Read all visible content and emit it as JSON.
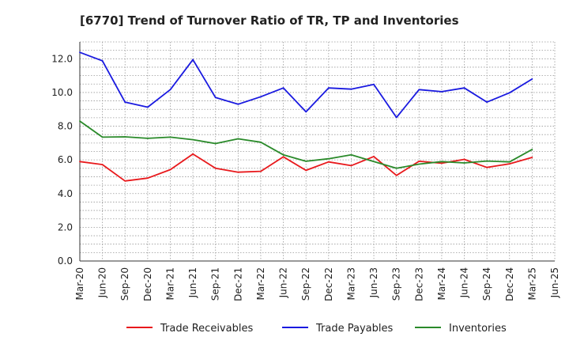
{
  "chart_data": {
    "type": "line",
    "title": "[6770]  Trend of Turnover Ratio of TR, TP and Inventories",
    "xlabel": "",
    "ylabel": "",
    "x": [
      "Mar-20",
      "Jun-20",
      "Sep-20",
      "Dec-20",
      "Mar-21",
      "Jun-21",
      "Sep-21",
      "Dec-21",
      "Mar-22",
      "Jun-22",
      "Sep-22",
      "Dec-22",
      "Mar-23",
      "Jun-23",
      "Sep-23",
      "Dec-23",
      "Mar-24",
      "Jun-24",
      "Sep-24",
      "Dec-24",
      "Mar-25",
      "Jun-25"
    ],
    "ylim": [
      0,
      13
    ],
    "yticks": [
      "0.0",
      "2.0",
      "4.0",
      "6.0",
      "8.0",
      "10.0",
      "12.0"
    ],
    "grid": true,
    "legend": "bottom",
    "series": [
      {
        "name": "Trade Receivables",
        "color": "#e8191c",
        "values": [
          5.9,
          5.72,
          4.75,
          4.92,
          5.42,
          6.35,
          5.5,
          5.27,
          5.32,
          6.18,
          5.38,
          5.88,
          5.66,
          6.2,
          5.08,
          5.92,
          5.8,
          6.03,
          5.55,
          5.77,
          6.15,
          null
        ]
      },
      {
        "name": "Trade Payables",
        "color": "#1a1ae0",
        "values": [
          12.38,
          11.88,
          9.43,
          9.13,
          10.17,
          11.95,
          9.7,
          9.3,
          9.75,
          10.27,
          8.85,
          10.27,
          10.2,
          10.48,
          8.52,
          10.17,
          10.05,
          10.27,
          9.43,
          9.98,
          10.8,
          null
        ]
      },
      {
        "name": "Inventories",
        "color": "#2a8a2a",
        "values": [
          8.3,
          7.35,
          7.37,
          7.28,
          7.35,
          7.2,
          6.97,
          7.25,
          7.05,
          6.3,
          5.92,
          6.07,
          6.3,
          5.9,
          5.5,
          5.75,
          5.9,
          5.82,
          5.93,
          5.88,
          6.62,
          null
        ]
      }
    ]
  }
}
